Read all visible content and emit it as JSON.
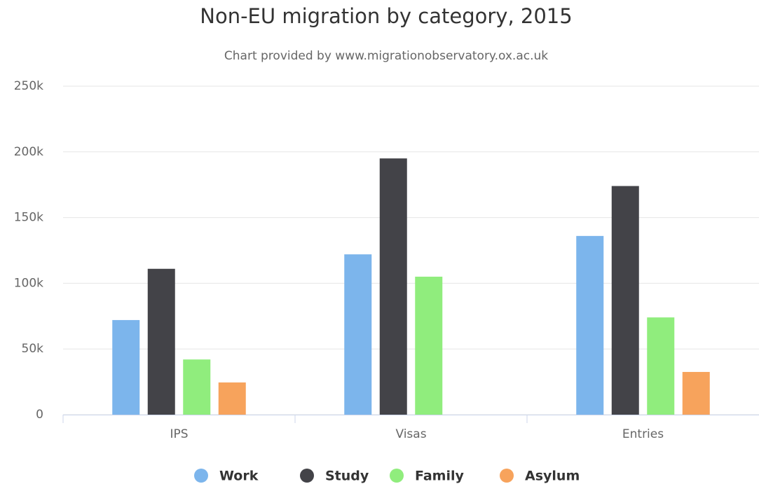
{
  "chart_data": {
    "type": "bar",
    "title": "Non-EU migration by category, 2015",
    "subtitle": "Chart provided by www.migrationobservatory.ox.ac.uk",
    "categories": [
      "IPS",
      "Visas",
      "Entries"
    ],
    "series": [
      {
        "name": "Work",
        "color": "#7cb5ec",
        "values": [
          72000,
          122000,
          136000
        ]
      },
      {
        "name": "Study",
        "color": "#434348",
        "values": [
          111000,
          195000,
          174000
        ]
      },
      {
        "name": "Family",
        "color": "#90ed7d",
        "values": [
          42000,
          105000,
          74000
        ]
      },
      {
        "name": "Asylum",
        "color": "#f7a35c",
        "values": [
          24500,
          null,
          32500
        ]
      }
    ],
    "ylim": [
      0,
      250000
    ],
    "yticks": [
      0,
      {
        "value": 50000,
        "label": "50k"
      },
      {
        "value": 100000,
        "label": "100k"
      },
      {
        "value": 150000,
        "label": "150k"
      },
      {
        "value": 200000,
        "label": "200k"
      },
      {
        "value": 250000,
        "label": "250k"
      }
    ],
    "grid": true,
    "legend": "bottom"
  }
}
